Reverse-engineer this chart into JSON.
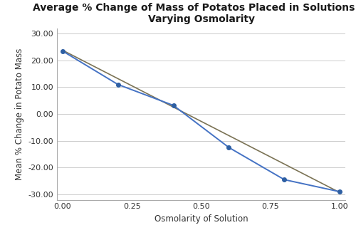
{
  "x_data": [
    0.0,
    0.2,
    0.4,
    0.6,
    0.8,
    1.0
  ],
  "y_data": [
    23.5,
    11.0,
    3.2,
    -12.5,
    -24.5,
    -29.0
  ],
  "trendline_x": [
    0.0,
    1.0
  ],
  "trendline_y": [
    23.8,
    -29.3
  ],
  "title": "Average % Change of Mass of Potatos Placed in Solutions of\nVarying Osmolarity",
  "xlabel": "Osmolarity of Solution",
  "ylabel": "Mean % Change in Potato Mass",
  "xlim": [
    -0.02,
    1.02
  ],
  "ylim": [
    -32,
    32
  ],
  "yticks": [
    -30,
    -20,
    -10,
    0,
    10,
    20,
    30
  ],
  "xticks": [
    0.0,
    0.25,
    0.5,
    0.75,
    1.0
  ],
  "xtick_labels": [
    "0.00",
    "0.25",
    "0.50",
    "0.75",
    "1.00"
  ],
  "ytick_labels": [
    "-30.00",
    "-20.00",
    "-10.00",
    "0.00",
    "10.00",
    "20.00",
    "30.00"
  ],
  "line_color": "#4472C4",
  "marker_color": "#2E5FA3",
  "trendline_color": "#7B7355",
  "background_color": "#FFFFFF",
  "grid_color": "#CCCCCC",
  "title_fontsize": 10,
  "label_fontsize": 8.5,
  "tick_fontsize": 8
}
